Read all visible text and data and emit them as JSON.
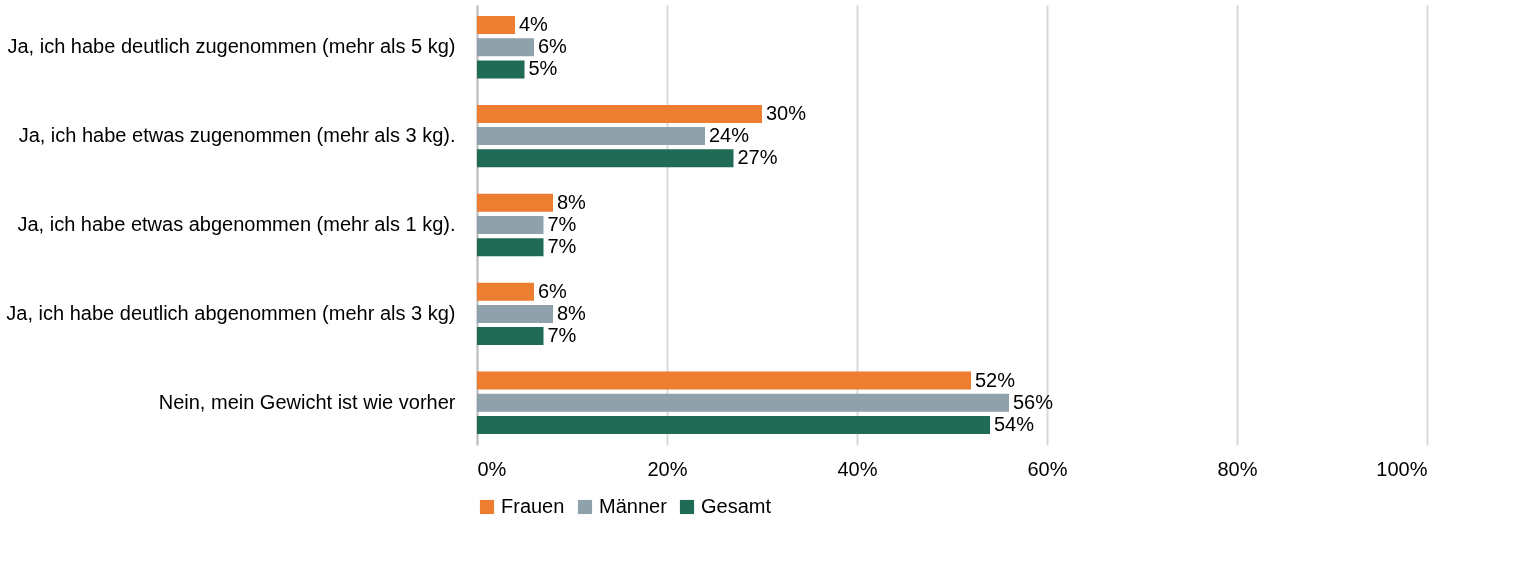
{
  "chart_data": {
    "type": "bar",
    "orientation": "horizontal",
    "categories": [
      "Ja, ich habe deutlich zugenommen (mehr als 5 kg)",
      "Ja, ich habe etwas zugenommen (mehr als 3 kg).",
      "Ja, ich habe etwas abgenommen (mehr als 1 kg).",
      "Ja, ich habe deutlich abgenommen (mehr als 3 kg)",
      "Nein, mein Gewicht ist wie vorher"
    ],
    "series": [
      {
        "name": "Frauen",
        "color": "#ed7d31",
        "values": [
          4,
          30,
          8,
          6,
          52
        ],
        "value_labels": [
          "4%",
          "30%",
          "8%",
          "6%",
          "52%"
        ]
      },
      {
        "name": "Männer",
        "color": "#8fa1ab",
        "values": [
          6,
          24,
          7,
          8,
          56
        ],
        "value_labels": [
          "6%",
          "24%",
          "7%",
          "8%",
          "56%"
        ]
      },
      {
        "name": "Gesamt",
        "color": "#1f6b56",
        "values": [
          5,
          27,
          7,
          7,
          54
        ],
        "value_labels": [
          "5%",
          "27%",
          "7%",
          "7%",
          "54%"
        ]
      }
    ],
    "xlim": [
      0,
      100
    ],
    "xticks": [
      {
        "value": 0,
        "label": "0%"
      },
      {
        "value": 20,
        "label": "20%"
      },
      {
        "value": 40,
        "label": "40%"
      },
      {
        "value": 60,
        "label": "60%"
      },
      {
        "value": 80,
        "label": "80%"
      },
      {
        "value": 100,
        "label": "100%"
      }
    ],
    "grid": "x",
    "legend": "bottom"
  }
}
